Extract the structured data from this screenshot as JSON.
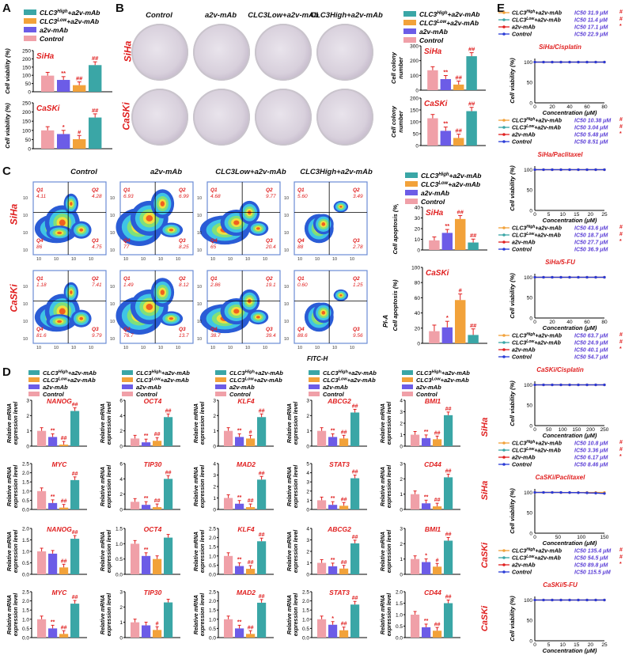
{
  "colors": {
    "high": "#3aa6a6",
    "low": "#f2a23a",
    "a2v": "#6c5ce7",
    "control": "#f0a0a8",
    "red": "#e02020",
    "purple": "#5b3fd6"
  },
  "legend": {
    "high": "CLC3High+a2v-mAb",
    "low": "CLC3Low+a2v-mAb",
    "a2v": "a2v-mAb",
    "control": "Control"
  },
  "panelA": {
    "letter": "A",
    "ylabel": "Cell viability (%)",
    "siha": {
      "title": "SiHa",
      "values": [
        98,
        72,
        40,
        162
      ],
      "stars": [
        "",
        "**",
        "##",
        "##"
      ]
    },
    "caski": {
      "title": "CaSKi",
      "values": [
        100,
        80,
        52,
        170
      ],
      "stars": [
        "",
        "*",
        "#",
        "##"
      ]
    }
  },
  "panelB": {
    "letter": "B",
    "cols": [
      "Control",
      "a2v-mAb",
      "CLC3Low+a2v-mAb",
      "CLC3High+a2v-mAb"
    ],
    "rows": [
      "SiHa",
      "CaSKi"
    ],
    "ylabel": "Cell colony number",
    "siha": {
      "title": "SiHa",
      "values": [
        135,
        75,
        38,
        230
      ],
      "stars": [
        "",
        "**",
        "##",
        "##"
      ]
    },
    "caski": {
      "title": "CaSKi",
      "values": [
        115,
        62,
        32,
        145
      ],
      "stars": [
        "",
        "**",
        "##",
        "##"
      ]
    }
  },
  "panelC": {
    "letter": "C",
    "cols": [
      "Control",
      "a2v-mAb",
      "CLC3Low+a2v-mAb",
      "CLC3High+a2v-mAb"
    ],
    "rows": [
      "SiHa",
      "CaSKi"
    ],
    "axis_x": "FITC-H",
    "axis_y": "PI-A",
    "quads": [
      [
        [
          "4.11",
          "4.28",
          "86",
          "4.75"
        ],
        [
          "6.93",
          "6.99",
          "77",
          "8.25"
        ],
        [
          "4.68",
          "9.77",
          "65",
          "20.4"
        ],
        [
          "5.60",
          "3.49",
          "88",
          "2.78"
        ]
      ],
      [
        [
          "1.18",
          "7.41",
          "81.6",
          "9.79"
        ],
        [
          "1.49",
          "8.12",
          "76.7",
          "13.7"
        ],
        [
          "2.86",
          "19.1",
          "38.7",
          "39.4"
        ],
        [
          "0.60",
          "1.25",
          "88.6",
          "9.56"
        ]
      ]
    ],
    "ylabel": "Cell apoptosis (%)",
    "siha": {
      "title": "SiHa",
      "values": [
        9,
        16,
        29,
        7
      ],
      "stars": [
        "",
        "**",
        "##",
        "##"
      ]
    },
    "caski": {
      "title": "CaSKi",
      "values": [
        16,
        21,
        57,
        11
      ],
      "stars": [
        "",
        "*",
        "#",
        "##"
      ]
    }
  },
  "panelD": {
    "letter": "D",
    "ylabel": "Relative mRNA expression level",
    "rowlabels": [
      "SiHa",
      "SiHa",
      "CaSKi",
      "CaSKi"
    ],
    "rows": [
      [
        {
          "gene": "NANOG",
          "ymax": 3,
          "ticks": [
            "0",
            "1",
            "2",
            "3"
          ],
          "values": [
            1.0,
            0.6,
            0.1,
            2.3
          ],
          "stars": [
            "",
            "**",
            "##",
            "##"
          ]
        },
        {
          "gene": "OCT4",
          "ymax": 6,
          "ticks": [
            "0",
            "2",
            "4",
            "6"
          ],
          "values": [
            1.0,
            0.5,
            0.7,
            3.8
          ],
          "stars": [
            "",
            "**",
            "##",
            "##"
          ]
        },
        {
          "gene": "KLF4",
          "ymax": 3,
          "ticks": [
            "0",
            "1",
            "2",
            "3"
          ],
          "values": [
            1.0,
            0.6,
            0.5,
            1.9
          ],
          "stars": [
            "",
            "**",
            "#",
            "##"
          ]
        },
        {
          "gene": "ABCG2",
          "ymax": 3,
          "ticks": [
            "0",
            "1",
            "2",
            "3"
          ],
          "values": [
            1.0,
            0.6,
            0.5,
            2.2
          ],
          "stars": [
            "",
            "**",
            "##",
            "##"
          ]
        },
        {
          "gene": "BMI1",
          "ymax": 4,
          "ticks": [
            "0",
            "1",
            "2",
            "3",
            "4"
          ],
          "values": [
            1.0,
            0.7,
            0.6,
            2.7
          ],
          "stars": [
            "",
            "**",
            "##",
            "##"
          ]
        }
      ],
      [
        {
          "gene": "MYC",
          "ymax": 2.5,
          "ticks": [
            "0.0",
            "0.5",
            "1.0",
            "1.5",
            "2.0",
            "2.5"
          ],
          "values": [
            1.0,
            0.35,
            0.1,
            1.6
          ],
          "stars": [
            "",
            "**",
            "##",
            "##"
          ]
        },
        {
          "gene": "TIP30",
          "ymax": 6,
          "ticks": [
            "0",
            "2",
            "4",
            "6"
          ],
          "values": [
            1.0,
            0.6,
            0.3,
            4.0
          ],
          "stars": [
            "",
            "**",
            "##",
            "##"
          ]
        },
        {
          "gene": "MAD2",
          "ymax": 4,
          "ticks": [
            "0",
            "1",
            "2",
            "3",
            "4"
          ],
          "values": [
            1.0,
            0.5,
            0.2,
            2.6
          ],
          "stars": [
            "",
            "**",
            "##",
            "##"
          ]
        },
        {
          "gene": "STAT3",
          "ymax": 5,
          "ticks": [
            "0",
            "1",
            "2",
            "3",
            "4",
            "5"
          ],
          "values": [
            1.0,
            0.5,
            0.4,
            3.4
          ],
          "stars": [
            "",
            "**",
            "##",
            "##"
          ]
        },
        {
          "gene": "CD44",
          "ymax": 3,
          "ticks": [
            "0",
            "1",
            "2",
            "3"
          ],
          "values": [
            1.0,
            0.4,
            0.2,
            2.1
          ],
          "stars": [
            "",
            "**",
            "##",
            "##"
          ]
        }
      ],
      [
        {
          "gene": "NANOG",
          "ymax": 2.0,
          "ticks": [
            "0.0",
            "0.5",
            "1.0",
            "1.5",
            "2.0"
          ],
          "values": [
            1.0,
            0.9,
            0.3,
            1.55
          ],
          "stars": [
            "",
            "",
            "##",
            "##"
          ]
        },
        {
          "gene": "OCT4",
          "ymax": 1.5,
          "ticks": [
            "0.0",
            "0.5",
            "1.0",
            "1.5"
          ],
          "values": [
            1.0,
            0.6,
            0.5,
            1.2
          ],
          "stars": [
            "",
            "**",
            "",
            ""
          ]
        },
        {
          "gene": "KLF4",
          "ymax": 2.5,
          "ticks": [
            "0.0",
            "0.5",
            "1.0",
            "1.5",
            "2.0",
            "2.5"
          ],
          "values": [
            1.0,
            0.45,
            0.3,
            1.8
          ],
          "stars": [
            "",
            "**",
            "##",
            "##"
          ]
        },
        {
          "gene": "ABCG2",
          "ymax": 4,
          "ticks": [
            "0",
            "1",
            "2",
            "3",
            "4"
          ],
          "values": [
            1.0,
            0.7,
            0.5,
            2.7
          ],
          "stars": [
            "",
            "**",
            "##",
            "##"
          ]
        },
        {
          "gene": "BMI1",
          "ymax": 3,
          "ticks": [
            "0",
            "1",
            "2",
            "3"
          ],
          "values": [
            1.0,
            0.8,
            0.5,
            2.2
          ],
          "stars": [
            "",
            "*",
            "#",
            "##"
          ]
        }
      ],
      [
        {
          "gene": "MYC",
          "ymax": 2.5,
          "ticks": [
            "0.0",
            "0.5",
            "1.0",
            "1.5",
            "2.0",
            "2.5"
          ],
          "values": [
            1.0,
            0.5,
            0.2,
            1.85
          ],
          "stars": [
            "",
            "**",
            "##",
            "##"
          ]
        },
        {
          "gene": "TIP30",
          "ymax": 3,
          "ticks": [
            "0",
            "1",
            "2",
            "3"
          ],
          "values": [
            1.0,
            0.8,
            0.5,
            2.3
          ],
          "stars": [
            "",
            "",
            ".#",
            ""
          ]
        },
        {
          "gene": "MAD2",
          "ymax": 2.5,
          "ticks": [
            "0.0",
            "0.5",
            "1.0",
            "1.5",
            "2.0",
            "2.5"
          ],
          "values": [
            1.0,
            0.5,
            0.2,
            1.9
          ],
          "stars": [
            "",
            "**",
            "##",
            "##"
          ]
        },
        {
          "gene": "STAT3",
          "ymax": 2.5,
          "ticks": [
            "0.0",
            "0.5",
            "1.0",
            "1.5",
            "2.0",
            "2.5"
          ],
          "values": [
            1.0,
            0.7,
            0.4,
            1.8
          ],
          "stars": [
            "",
            "*",
            "##",
            "##"
          ]
        },
        {
          "gene": "CD44",
          "ymax": 2.0,
          "ticks": [
            "0.0",
            "0.5",
            "1.0",
            "1.5",
            "2.0"
          ],
          "values": [
            1.0,
            0.45,
            0.3,
            1.5
          ],
          "stars": [
            "",
            "**",
            "##",
            "##"
          ]
        }
      ]
    ]
  },
  "panelE": {
    "letter": "E",
    "ylabel": "Cell viability (%)",
    "xlabel": "Concentration (μM)",
    "plots": [
      {
        "title": "SiHa/Cisplatin",
        "ic50": [
          "IC50 31.9 μM",
          "IC50 11.4 μM",
          "IC50 17.1 μM",
          "IC50 22.9 μM"
        ],
        "marks": [
          "#",
          "#",
          "*",
          ""
        ],
        "xticks": [
          "0",
          "20",
          "40",
          "60",
          "80"
        ],
        "xmax": 80
      },
      {
        "title": "SiHa/Paclitaxel",
        "ic50": [
          "IC50 10.38 μM",
          "IC50 3.04 μM",
          "IC50 5.48 μM",
          "IC50 8.51 μM"
        ],
        "marks": [
          "#",
          "#",
          "*",
          ""
        ],
        "xticks": [
          "0",
          "5",
          "10",
          "15",
          "20",
          "25"
        ],
        "xmax": 25
      },
      {
        "title": "SiHa/5-FU",
        "ic50": [
          "IC50 43.6 μM",
          "IC50 18.7 μM",
          "IC50 27.7 μM",
          "IC50 36.9 μM"
        ],
        "marks": [
          "#",
          "#",
          "*",
          ""
        ],
        "xticks": [
          "0",
          "20",
          "40",
          "60",
          "80"
        ],
        "xmax": 80
      },
      {
        "title": "CaSKi/Cisplatin",
        "ic50": [
          "IC50 63.7 μM",
          "IC50 24.9 μM",
          "IC50 40.1 μM",
          "IC50 54.7 μM"
        ],
        "marks": [
          "#",
          "#",
          "*",
          ""
        ],
        "xticks": [
          "0",
          "50",
          "100",
          "150",
          "200",
          "250"
        ],
        "xmax": 250
      },
      {
        "title": "CaSKi/Paclitaxel",
        "ic50": [
          "IC50 10.8 μM",
          "IC50 3.36 μM",
          "IC50 6.17 μM",
          "IC50 8.46 μM"
        ],
        "marks": [
          "#",
          "#",
          "*",
          ""
        ],
        "xticks": [
          "0",
          "50",
          "100",
          "150"
        ],
        "xmax": 150
      },
      {
        "title": "CaSKi/5-FU",
        "ic50": [
          "IC50 135.4 μM",
          "IC50 54.5 μM",
          "IC50 89.8 μM",
          "IC50 115.5 μM"
        ],
        "marks": [
          "#",
          "#",
          "*",
          ""
        ],
        "xticks": [
          "0",
          "5",
          "10",
          "15",
          "20",
          "25"
        ],
        "xmax": 25
      }
    ],
    "yticks": [
      "0",
      "50",
      "100"
    ]
  }
}
